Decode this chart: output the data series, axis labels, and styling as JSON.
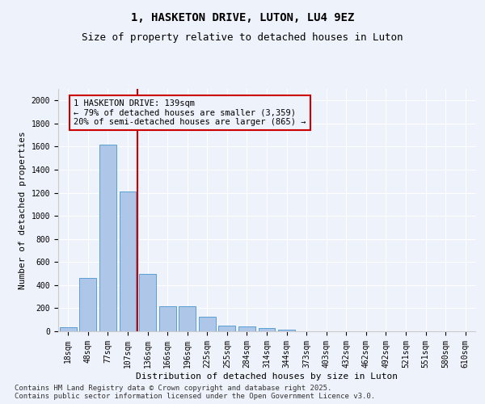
{
  "title": "1, HASKETON DRIVE, LUTON, LU4 9EZ",
  "subtitle": "Size of property relative to detached houses in Luton",
  "xlabel": "Distribution of detached houses by size in Luton",
  "ylabel": "Number of detached properties",
  "categories": [
    "18sqm",
    "48sqm",
    "77sqm",
    "107sqm",
    "136sqm",
    "166sqm",
    "196sqm",
    "225sqm",
    "255sqm",
    "284sqm",
    "314sqm",
    "344sqm",
    "373sqm",
    "403sqm",
    "432sqm",
    "462sqm",
    "492sqm",
    "521sqm",
    "551sqm",
    "580sqm",
    "610sqm"
  ],
  "values": [
    35,
    460,
    1620,
    1210,
    500,
    220,
    220,
    125,
    50,
    40,
    25,
    15,
    0,
    0,
    0,
    0,
    0,
    0,
    0,
    0,
    0
  ],
  "bar_color": "#aec6e8",
  "bar_edge_color": "#5a9fd4",
  "vline_index": 3.5,
  "vline_color": "#cc0000",
  "annotation_line1": "1 HASKETON DRIVE: 139sqm",
  "annotation_line2": "← 79% of detached houses are smaller (3,359)",
  "annotation_line3": "20% of semi-detached houses are larger (865) →",
  "annotation_box_color": "#cc0000",
  "ylim": [
    0,
    2100
  ],
  "yticks": [
    0,
    200,
    400,
    600,
    800,
    1000,
    1200,
    1400,
    1600,
    1800,
    2000
  ],
  "bg_color": "#eef2fa",
  "grid_color": "#ffffff",
  "footer": "Contains HM Land Registry data © Crown copyright and database right 2025.\nContains public sector information licensed under the Open Government Licence v3.0.",
  "title_fontsize": 10,
  "subtitle_fontsize": 9,
  "axis_label_fontsize": 8,
  "tick_fontsize": 7,
  "annotation_fontsize": 7.5,
  "footer_fontsize": 6.5
}
